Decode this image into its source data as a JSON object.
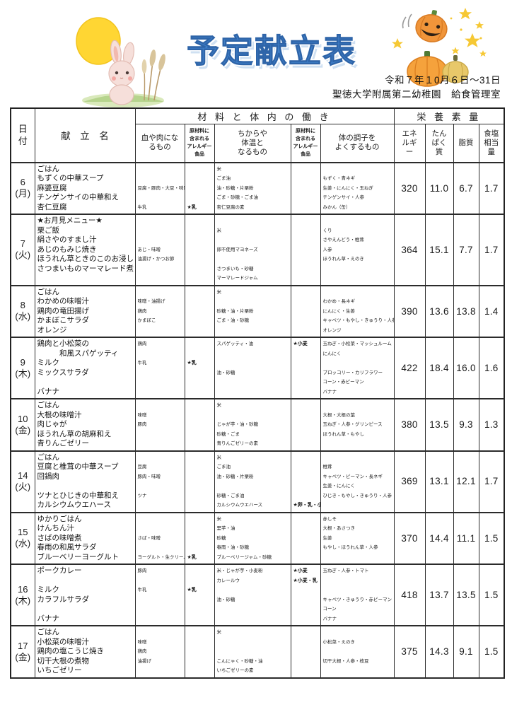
{
  "header": {
    "title": "予定献立表",
    "period": "令和７年１0月６日～31日",
    "organization": "聖徳大学附属第二幼稚園　給食管理室",
    "illustrations": [
      "moon",
      "rabbit-on-grass",
      "pampas-grass",
      "jack-o-lantern",
      "pumpkins",
      "stars"
    ],
    "colors": {
      "title_blue": "#3f7fc8",
      "moon_yellow": "#ffd633",
      "pumpkin_orange": "#f0953a",
      "star_yellow": "#f6c834",
      "grass_green": "#b6d48d",
      "rabbit_pink": "#f6dfda"
    }
  },
  "table": {
    "col_headers": {
      "date": "日\n付",
      "menu": "献　立　名",
      "materials_group": "材 料 と 体 内 の 働 き",
      "nutrients_group": "栄 養 素 量",
      "blood": "血や肉にな\nるもの",
      "allergy1": "原材料に\n含まれる\nアレルギー食品",
      "power": "ちからや\n体温と\nなるもの",
      "allergy2": "原材料に\n含まれる\nアレルギー食品",
      "condition": "体の調子を\nよくするもの",
      "energy": "エネ\nルギ\nー",
      "protein": "たん\nぱく\n質",
      "fat": "脂質",
      "salt": "食塩\n相当\n量"
    },
    "rows": [
      {
        "date": "6",
        "dow": "(月)",
        "menu": [
          "ごはん",
          "もずくの中華スープ",
          "麻婆豆腐",
          "チンゲンサイの中華和え",
          "杏仁豆腐"
        ],
        "blood": [
          "",
          "",
          "豆腐・豚肉・大豆・味噌",
          "",
          "牛乳"
        ],
        "allergy1": [
          "",
          "",
          "",
          "",
          "★乳"
        ],
        "power": [
          "米",
          "ごま油",
          "油・砂糖・片栗粉",
          "ごま・砂糖・ごま油",
          "杏仁豆腐の素"
        ],
        "allergy2": [],
        "condition": [
          "",
          "もずく・青ネギ",
          "生姜・にんにく・玉ねぎ",
          "チンゲンサイ・人参",
          "みかん（缶）"
        ],
        "energy": "320",
        "protein": "11.0",
        "fat": "6.7",
        "salt": "1.7"
      },
      {
        "date": "7",
        "dow": "(火)",
        "menu": [
          "★お月見メニュー★",
          "栗ご飯",
          "絹さやのすまし汁",
          "あじのもみじ焼き",
          "ほうれん草ときのこのお浸し",
          "さつまいものマーマレード煮"
        ],
        "blood": [
          "",
          "",
          "",
          "あじ・味噌",
          "油揚げ・かつお節"
        ],
        "allergy1": [],
        "power": [
          "",
          "米",
          "",
          "卵不使用マヨネーズ",
          "",
          "さつまいも・砂糖",
          "マーマレードジャム"
        ],
        "allergy2": [],
        "condition": [
          "",
          "くり",
          "さやえんどう・椎茸",
          "人参",
          "ほうれん草・えのき"
        ],
        "energy": "364",
        "protein": "15.1",
        "fat": "7.7",
        "salt": "1.7"
      },
      {
        "date": "8",
        "dow": "(水)",
        "menu": [
          "ごはん",
          "わかめの味噌汁",
          "鶏肉の竜田揚げ",
          "かまぼこサラダ",
          "オレンジ"
        ],
        "blood": [
          "",
          "味噌・油揚げ",
          "鶏肉",
          "かまぼこ"
        ],
        "allergy1": [],
        "power": [
          "米",
          "",
          "砂糖・油・片栗粉",
          "ごま・油・砂糖"
        ],
        "allergy2": [],
        "condition": [
          "",
          "わかめ・長ネギ",
          "にんにく・生姜",
          "キャベツ・もやし・きゅうり・人参",
          "オレンジ"
        ],
        "energy": "390",
        "protein": "13.6",
        "fat": "13.8",
        "salt": "1.4"
      },
      {
        "date": "9",
        "dow": "(木)",
        "menu": [
          "鶏肉と小松菜の",
          "　　　和風スパゲッティ",
          "ミルク",
          "ミックスサラダ",
          "",
          "バナナ"
        ],
        "blood": [
          "鶏肉",
          "",
          "牛乳"
        ],
        "allergy1": [
          "",
          "",
          "★乳"
        ],
        "power": [
          "スパゲッティ・油",
          "",
          "",
          "油・砂糖"
        ],
        "allergy2": [
          "★小麦"
        ],
        "condition": [
          "玉ねぎ・小松菜・マッシュルーム",
          "にんにく",
          "",
          "ブロッコリー・カリフラワー",
          "コーン・赤ピーマン",
          "バナナ"
        ],
        "energy": "422",
        "protein": "18.4",
        "fat": "16.0",
        "salt": "1.6"
      },
      {
        "date": "10",
        "dow": "(金)",
        "menu": [
          "ごはん",
          "大根の味噌汁",
          "肉じゃが",
          "ほうれん草の胡麻和え",
          "青りんごゼリー"
        ],
        "blood": [
          "",
          "味噌",
          "豚肉"
        ],
        "allergy1": [],
        "power": [
          "米",
          "",
          "じゃが芋・油・砂糖",
          "砂糖・ごま",
          "青りんごゼリーの素"
        ],
        "allergy2": [],
        "condition": [
          "",
          "大根・大根の葉",
          "玉ねぎ・人参・グリンピース",
          "ほうれん草・もやし"
        ],
        "energy": "380",
        "protein": "13.5",
        "fat": "9.3",
        "salt": "1.3"
      },
      {
        "date": "14",
        "dow": "(火)",
        "menu": [
          "ごはん",
          "豆腐と椎茸の中華スープ",
          "回鍋肉",
          "",
          "ツナとひじきの中華和え",
          "カルシウムウエハース"
        ],
        "blood": [
          "",
          "豆腐",
          "豚肉・味噌",
          "",
          "ツナ"
        ],
        "allergy1": [],
        "power": [
          "米",
          "ごま油",
          "油・砂糖・片栗粉",
          "",
          "砂糖・ごま油",
          "カルシウムウエハース"
        ],
        "allergy2": [
          "",
          "",
          "",
          "",
          "",
          "★卵・乳・小麦"
        ],
        "condition": [
          "",
          "椎茸",
          "キャベツ・ピーマン・長ネギ",
          "生姜・にんにく",
          "ひじき・もやし・きゅうり・人参"
        ],
        "energy": "369",
        "protein": "13.1",
        "fat": "12.1",
        "salt": "1.7"
      },
      {
        "date": "15",
        "dow": "(水)",
        "menu": [
          "ゆかりごはん",
          "けんちん汁",
          "さばの味噌煮",
          "春雨の和風サラダ",
          "ブルーベリーヨーグルト"
        ],
        "blood": [
          "",
          "",
          "さば・味噌",
          "",
          "ヨーグルト・生クリーム"
        ],
        "allergy1": [
          "",
          "",
          "",
          "",
          "★乳"
        ],
        "power": [
          "米",
          "里芋・油",
          "砂糖",
          "春雨・油・砂糖",
          "ブルーベリージャム・砂糖"
        ],
        "allergy2": [],
        "condition": [
          "赤しそ",
          "大根・あさつき",
          "生姜",
          "もやし・ほうれん草・人参"
        ],
        "energy": "370",
        "protein": "14.4",
        "fat": "11.1",
        "salt": "1.5"
      },
      {
        "date": "16",
        "dow": "(木)",
        "menu": [
          "ポークカレー",
          "",
          "ミルク",
          "カラフルサラダ",
          "",
          "バナナ"
        ],
        "blood": [
          "豚肉",
          "",
          "牛乳"
        ],
        "allergy1": [
          "",
          "",
          "★乳"
        ],
        "power": [
          "米・じゃが芋・小麦粉",
          "カレールウ",
          "",
          "油・砂糖"
        ],
        "allergy2": [
          "★小麦",
          "★小麦・乳"
        ],
        "condition": [
          "玉ねぎ・人参・トマト",
          "",
          "",
          "キャベツ・きゅうり・赤ピーマン",
          "コーン",
          "バナナ"
        ],
        "energy": "418",
        "protein": "13.7",
        "fat": "13.5",
        "salt": "1.5"
      },
      {
        "date": "17",
        "dow": "(金)",
        "menu": [
          "ごはん",
          "小松菜の味噌汁",
          "鶏肉の塩こうじ焼き",
          "切干大根の煮物",
          "いちごゼリー"
        ],
        "blood": [
          "",
          "味噌",
          "鶏肉",
          "油揚げ"
        ],
        "allergy1": [],
        "power": [
          "米",
          "",
          "",
          "こんにゃく・砂糖・油",
          "いちごゼリーの素"
        ],
        "allergy2": [],
        "condition": [
          "",
          "小松菜・えのき",
          "",
          "切干大根・人参・枝豆"
        ],
        "energy": "375",
        "protein": "14.3",
        "fat": "9.1",
        "salt": "1.5"
      }
    ]
  }
}
